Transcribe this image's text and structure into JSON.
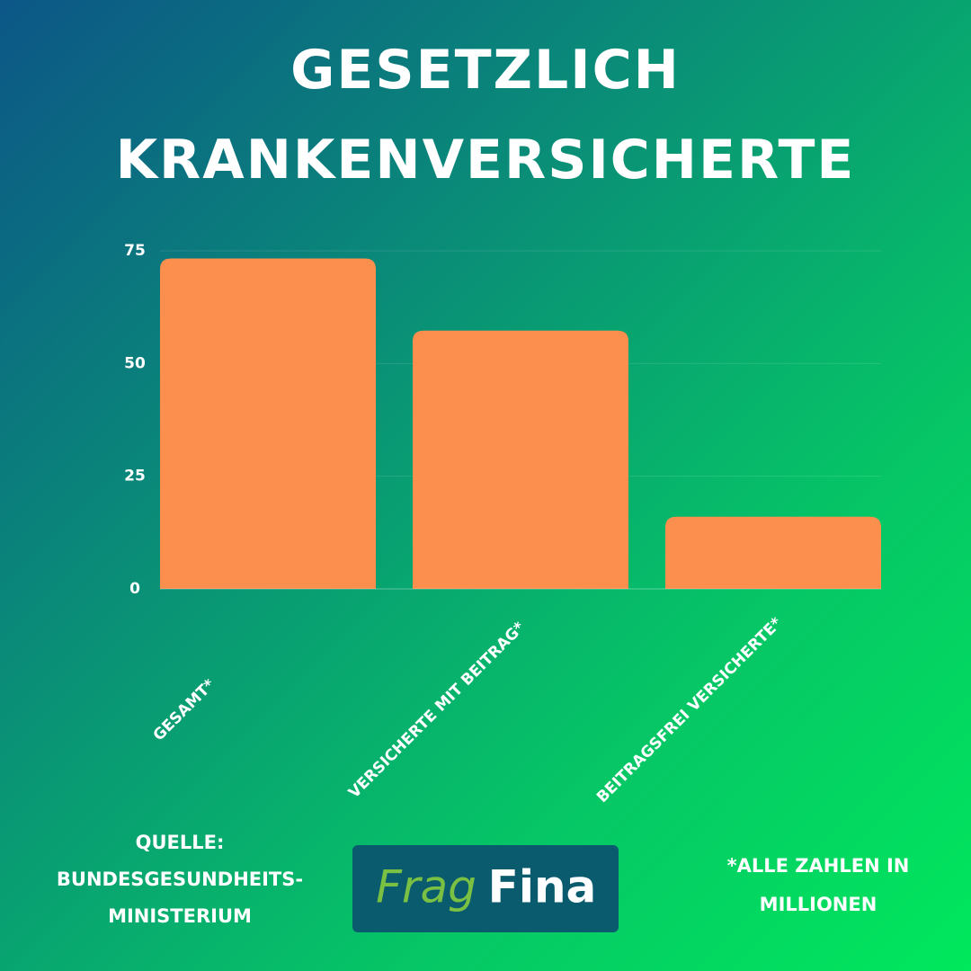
{
  "chart_data": {
    "type": "bar",
    "title": "GESETZLICH KRANKENVERSICHERTE",
    "categories": [
      "GESAMT*",
      "VERSICHERTE MIT BEITRAG*",
      "BEITRAGSFREI VERSICHERTE*"
    ],
    "values": [
      73.3,
      57.3,
      16
    ],
    "color": "#fd8f4e",
    "ylim": [
      0,
      75
    ],
    "yticks": [
      0,
      25,
      50,
      75
    ],
    "grid": true
  },
  "footer": {
    "source": [
      "QUELLE:",
      "BUNDESGESUNDHEITS-",
      "MINISTERIUM"
    ],
    "note": [
      "*ALLE ZAHLEN IN",
      "MILLIONEN"
    ],
    "logo": [
      "Frag",
      "Fina"
    ]
  }
}
